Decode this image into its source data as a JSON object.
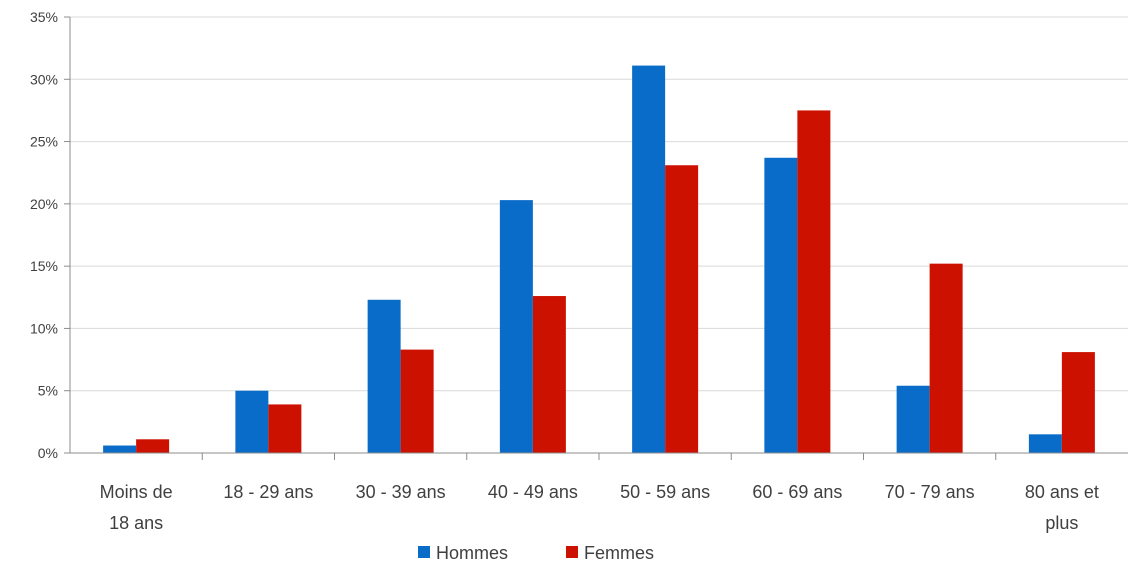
{
  "chart_data": {
    "type": "bar",
    "categories": [
      "Moins de 18 ans",
      "18 - 29 ans",
      "30 - 39 ans",
      "40 - 49 ans",
      "50 - 59 ans",
      "60 - 69 ans",
      "70 - 79 ans",
      "80 ans et plus"
    ],
    "category_lines": [
      [
        "Moins de",
        "18 ans"
      ],
      [
        "18 - 29 ans"
      ],
      [
        "30 - 39 ans"
      ],
      [
        "40 - 49 ans"
      ],
      [
        "50 - 59 ans"
      ],
      [
        "60 - 69 ans"
      ],
      [
        "70 - 79 ans"
      ],
      [
        "80 ans et",
        "plus"
      ]
    ],
    "series": [
      {
        "name": "Hommes",
        "color": "#0A6CC9",
        "values": [
          0.6,
          5.0,
          12.3,
          20.3,
          31.1,
          23.7,
          5.4,
          1.5
        ]
      },
      {
        "name": "Femmes",
        "color": "#CC1100",
        "values": [
          1.1,
          3.9,
          8.3,
          12.6,
          23.1,
          27.5,
          15.2,
          8.1
        ]
      }
    ],
    "y_ticks": [
      "0%",
      "5%",
      "10%",
      "15%",
      "20%",
      "25%",
      "30%",
      "35%"
    ],
    "ylim": [
      0,
      35
    ],
    "grid": true,
    "legend_position": "bottom-center",
    "title": "",
    "xlabel": "",
    "ylabel": ""
  }
}
